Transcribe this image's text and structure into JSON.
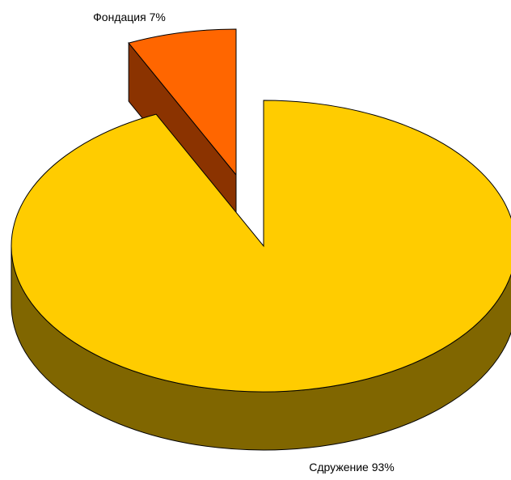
{
  "chart_data": {
    "type": "pie",
    "title": "",
    "slices": [
      {
        "name": "Сдружение",
        "value": 93,
        "label": "Сдружение 93%",
        "top_color": "#FFCC00",
        "side_color": "#806600",
        "exploded": false
      },
      {
        "name": "Фондация",
        "value": 7,
        "label": "Фондация 7%",
        "top_color": "#FF6600",
        "side_color": "#8B3300",
        "exploded": true
      }
    ]
  }
}
